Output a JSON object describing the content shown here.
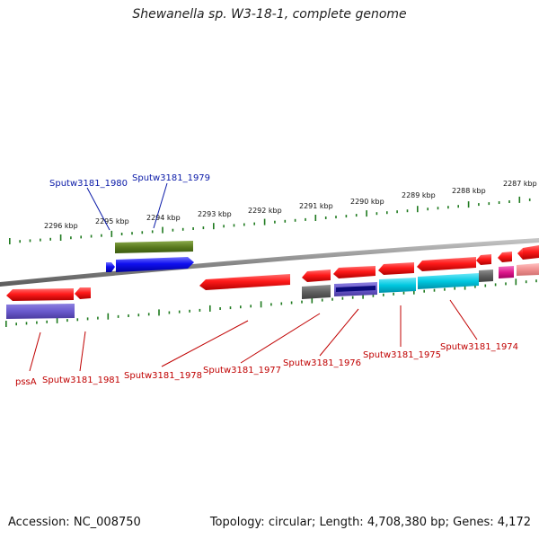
{
  "title": "Shewanella sp. W3-18-1, complete genome",
  "footer": {
    "accession_label": "Accession:",
    "accession": "NC_008750",
    "topology_label": "Topology:",
    "topology": "circular",
    "length_label": "Length:",
    "length": "4,708,380 bp",
    "genes_label": "Genes:",
    "genes": "4,172"
  },
  "scale_labels": [
    "2296 kbp",
    "2295 kbp",
    "2294 kbp",
    "2293 kbp",
    "2292 kbp",
    "2291 kbp",
    "2290 kbp",
    "2289 kbp",
    "2288 kbp",
    "2287 kbp"
  ],
  "gene_labels_top": [
    "Sputw3181_1980",
    "Sputw3181_1979"
  ],
  "gene_labels_bottom": [
    "pssA",
    "Sputw3181_1981",
    "Sputw3181_1978",
    "Sputw3181_1977",
    "Sputw3181_1976",
    "Sputw3181_1975",
    "Sputw3181_1974"
  ],
  "colors": {
    "forward_cds": "#2b2bff",
    "reverse_cds": "#ff1a1a",
    "tick": "#1f7a1f",
    "backbone": "#8a8a8a",
    "label_forward": "#0a1aa8",
    "label_reverse": "#c00000",
    "olive": "#5a7a1e",
    "slate": "#6a5acd",
    "gray": "#606060",
    "cyan": "#00c8e0",
    "magenta": "#e0188c"
  }
}
